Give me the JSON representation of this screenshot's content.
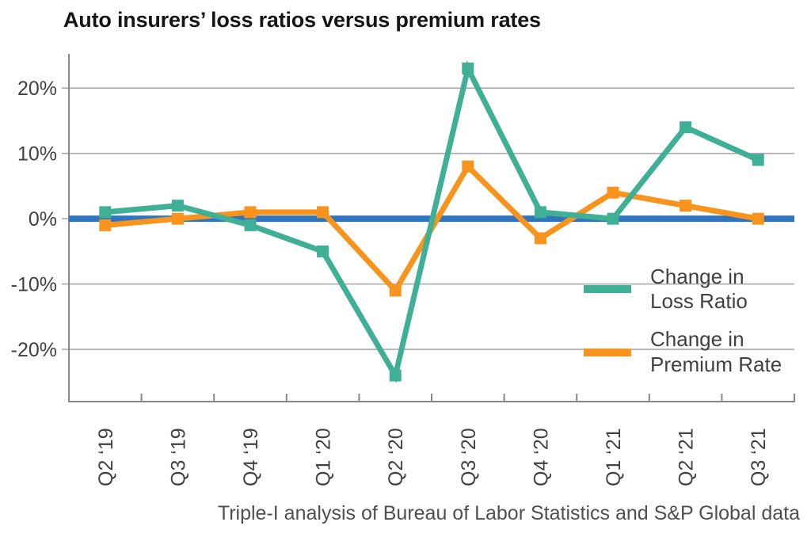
{
  "title": "Auto insurers’ loss ratios versus premium rates",
  "source": "Triple-I analysis of Bureau of Labor Statistics and S&P Global data",
  "chart_data": {
    "type": "line",
    "title": "Auto insurers’ loss ratios versus premium rates",
    "categories": [
      "Q2 ‘19",
      "Q3 ‘19",
      "Q4 ‘19",
      "Q1 ‘20",
      "Q2 ‘20",
      "Q3 ‘20",
      "Q4 ‘20",
      "Q1 ‘21",
      "Q2 ‘21",
      "Q3 ‘21"
    ],
    "series": [
      {
        "name": "Change in Loss Ratio",
        "label_lines": [
          "Change in",
          "Loss Ratio"
        ],
        "color": "#3FB095",
        "values": [
          1,
          2,
          -1,
          -5,
          -24,
          23,
          1,
          0,
          14,
          9
        ]
      },
      {
        "name": "Change in Premium Rate",
        "label_lines": [
          "Change in",
          "Premium Rate"
        ],
        "color": "#F8941D",
        "values": [
          -1,
          0,
          1,
          1,
          -11,
          8,
          -3,
          4,
          2,
          0
        ]
      }
    ],
    "y_ticks": [
      20,
      10,
      0,
      -10,
      -20
    ],
    "y_tick_suffix": "%",
    "ylim": [
      -28,
      25
    ],
    "zero_line": {
      "value": 0,
      "color": "#2F74BE"
    },
    "grid": true,
    "legend_position": "inside-right",
    "xlabel": "",
    "ylabel": "",
    "source": "Triple-I analysis of Bureau of Labor Statistics and S&P Global data"
  }
}
